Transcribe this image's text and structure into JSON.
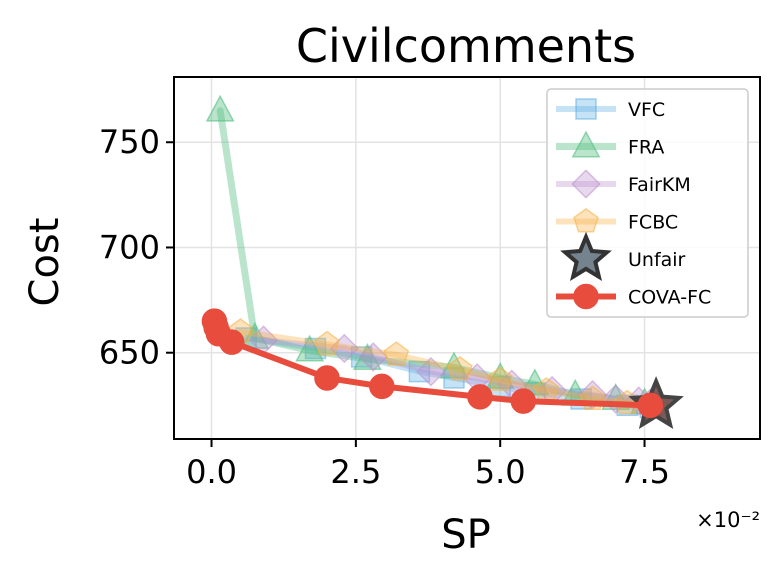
{
  "chart_data": {
    "type": "line",
    "title": "Civilcomments",
    "xlabel": "SP",
    "ylabel": "Cost",
    "x_multiplier_label": "×10⁻²",
    "xlim": [
      -0.65,
      9.5
    ],
    "ylim": [
      609,
      781
    ],
    "x_ticks": [
      0.0,
      2.5,
      5.0,
      7.5
    ],
    "x_tick_labels": [
      "0.0",
      "2.5",
      "5.0",
      "7.5"
    ],
    "y_ticks": [
      650,
      700,
      750
    ],
    "y_tick_labels": [
      "650",
      "700",
      "750"
    ],
    "grid": true,
    "legend_position": "upper-right",
    "series": [
      {
        "name": "VFC",
        "color": "#5DADE2",
        "marker": "square",
        "x": [
          0.6,
          1.8,
          2.6,
          3.6,
          4.2,
          5.0,
          5.6,
          6.4,
          7.2,
          7.6
        ],
        "y": [
          657,
          652,
          648,
          641,
          638,
          634,
          631,
          628,
          625,
          624
        ]
      },
      {
        "name": "FRA",
        "color": "#52BE80",
        "marker": "triangle",
        "x": [
          0.15,
          0.75,
          1.7,
          2.7,
          4.2,
          5.0,
          5.6,
          6.3,
          7.0,
          7.5
        ],
        "y": [
          765,
          657,
          651,
          647,
          643,
          638,
          635,
          630,
          628,
          626
        ]
      },
      {
        "name": "FairKM",
        "color": "#BB8FCE",
        "marker": "diamond",
        "x": [
          0.9,
          2.3,
          2.8,
          3.8,
          4.6,
          5.2,
          5.9,
          6.6,
          7.0,
          7.4,
          7.6
        ],
        "y": [
          656,
          652,
          648,
          641,
          638,
          635,
          632,
          630,
          628,
          627,
          626
        ]
      },
      {
        "name": "FCBC",
        "color": "#F5B041",
        "marker": "pentagon",
        "x": [
          0.5,
          2.0,
          3.2,
          4.3,
          5.0,
          5.8,
          6.6,
          7.2,
          7.7
        ],
        "y": [
          660,
          654,
          649,
          642,
          637,
          632,
          628,
          626,
          625
        ]
      },
      {
        "name": "Unfair",
        "color": "#7B8794",
        "marker": "star",
        "x": [
          7.7
        ],
        "y": [
          625
        ]
      },
      {
        "name": "COVA-FC",
        "color": "#E74C3C",
        "marker": "circle",
        "x": [
          0.05,
          0.08,
          0.12,
          0.35,
          2.0,
          2.95,
          4.65,
          5.4,
          7.6
        ],
        "y": [
          665,
          662,
          659,
          655,
          638,
          634,
          629,
          627,
          625
        ]
      }
    ]
  }
}
